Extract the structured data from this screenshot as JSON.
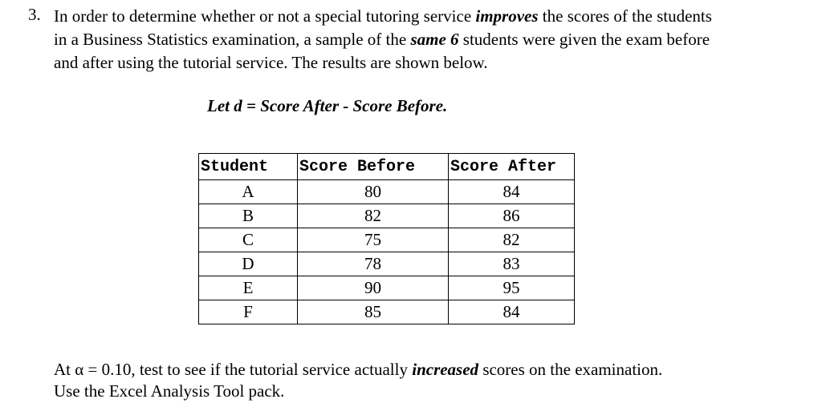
{
  "question": {
    "number": "3.",
    "line1_a": "In order to determine whether or not a special tutoring service ",
    "line1_em": "improves",
    "line1_b": " the scores of the students",
    "line2_a": "in a Business Statistics examination, a sample of the ",
    "line2_em": "same 6",
    "line2_b": " students were given the exam before",
    "line3": "and after using the tutorial service. The  results are shown below."
  },
  "definition": "Let d = Score After - Score Before.",
  "table": {
    "headers": [
      "Student",
      "Score Before",
      "Score After"
    ],
    "rows": [
      [
        "A",
        "80",
        "84"
      ],
      [
        "B",
        "82",
        "86"
      ],
      [
        "C",
        "75",
        "82"
      ],
      [
        "D",
        "78",
        "83"
      ],
      [
        "E",
        "90",
        "95"
      ],
      [
        "F",
        "85",
        "84"
      ]
    ]
  },
  "footer": {
    "line1_a": "At α = 0.10, test to see if the tutorial service actually ",
    "line1_em": "increased",
    "line1_b": " scores on the examination.",
    "line2": "Use the Excel Analysis Tool pack."
  }
}
